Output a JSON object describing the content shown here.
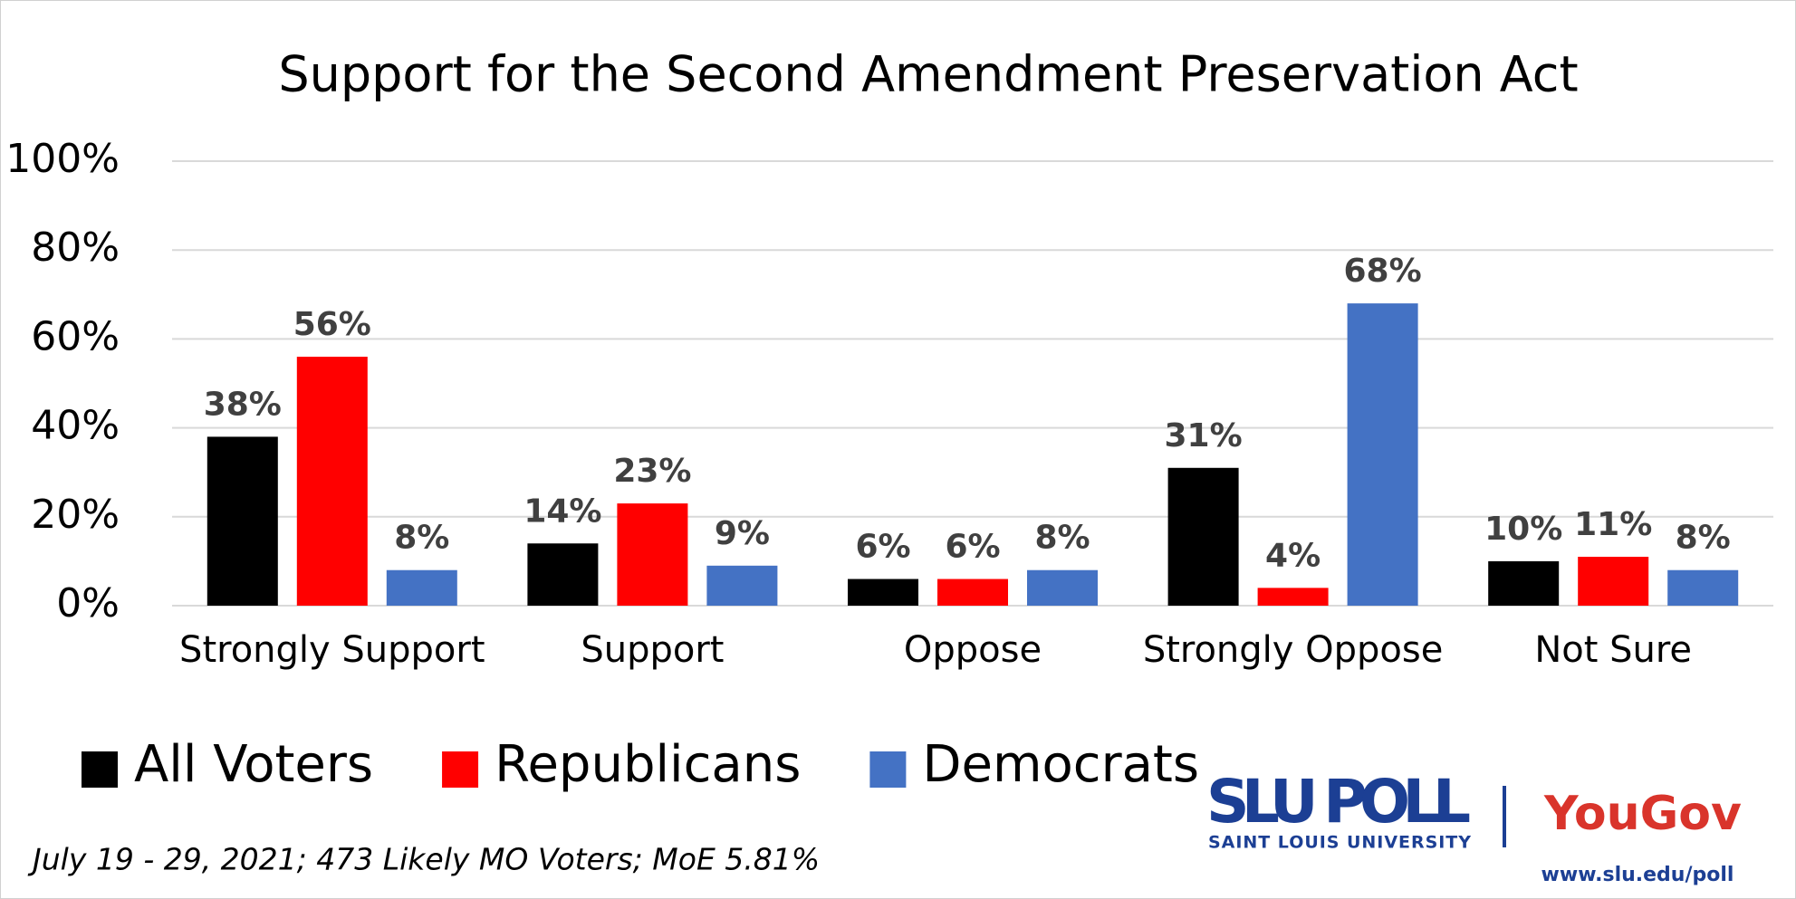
{
  "chart_data": {
    "type": "bar",
    "title": "Support for the Second Amendment Preservation Act",
    "categories": [
      "Strongly Support",
      "Support",
      "Oppose",
      "Strongly Oppose",
      "Not Sure"
    ],
    "series": [
      {
        "name": "All Voters",
        "color": "#000000",
        "values": [
          38,
          14,
          6,
          31,
          10
        ],
        "value_labels": [
          "38%",
          "14%",
          "6%",
          "31%",
          "10%"
        ]
      },
      {
        "name": "Republicans",
        "color": "#ff0000",
        "values": [
          56,
          23,
          6,
          4,
          11
        ],
        "value_labels": [
          "56%",
          "23%",
          "6%",
          "4%",
          "11%"
        ]
      },
      {
        "name": "Democrats",
        "color": "#4472c4",
        "values": [
          8,
          9,
          8,
          68,
          8
        ],
        "value_labels": [
          "8%",
          "9%",
          "8%",
          "68%",
          "8%"
        ]
      }
    ],
    "ylim": [
      0,
      100
    ],
    "yticks": [
      {
        "value": 0,
        "label": "0%"
      },
      {
        "value": 20,
        "label": "20%"
      },
      {
        "value": 40,
        "label": "40%"
      },
      {
        "value": 60,
        "label": "60%"
      },
      {
        "value": 80,
        "label": "80%"
      },
      {
        "value": 100,
        "label": "100%"
      }
    ],
    "grid": true,
    "legend": "bottom-left",
    "footnote": "July 19 - 29, 2021; 473 Likely MO Voters; MoE 5.81%",
    "branding": {
      "poll": "SLU POLL",
      "university": "SAINT LOUIS UNIVERSITY",
      "partner": "YouGov",
      "url": "www.slu.edu/poll"
    }
  }
}
